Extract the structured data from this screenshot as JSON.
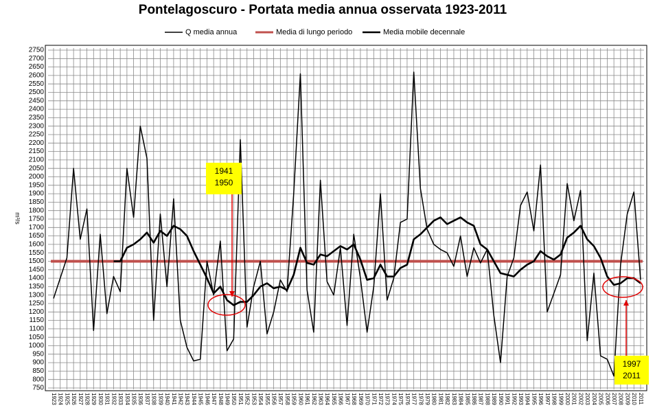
{
  "chart_data": {
    "type": "line",
    "title": "Pontelagoscuro - Portata media annua osservata 1923-2011",
    "y_label": "m³/s",
    "categories": [
      "1923",
      "1924",
      "1925",
      "1926",
      "1927",
      "1928",
      "1929",
      "1930",
      "1931",
      "1932",
      "1933",
      "1934",
      "1935",
      "1936",
      "1937",
      "1938",
      "1939",
      "1940",
      "1941",
      "1942",
      "1943",
      "1944",
      "1945",
      "1946",
      "1947",
      "1948",
      "1949",
      "1950",
      "1951",
      "1952",
      "1953",
      "1954",
      "1955",
      "1956",
      "1957",
      "1958",
      "1959",
      "1960",
      "1961",
      "1962",
      "1963",
      "1964",
      "1965",
      "1966",
      "1967",
      "1968",
      "1969",
      "1970",
      "1971",
      "1972",
      "1973",
      "1974",
      "1975",
      "1976",
      "1977",
      "1978",
      "1979",
      "1980",
      "1981",
      "1982",
      "1983",
      "1984",
      "1985",
      "1986",
      "1987",
      "1988",
      "1989",
      "1990",
      "1991",
      "1992",
      "1993",
      "1994",
      "1995",
      "1996",
      "1997",
      "1998",
      "1999",
      "2000",
      "2001",
      "2002",
      "2003",
      "2004",
      "2005",
      "2006",
      "2007",
      "2008",
      "2009",
      "2010",
      "2011"
    ],
    "series": [
      {
        "name": "Q media annua",
        "color": "#000000",
        "width": 1.5,
        "values": [
          1280,
          1400,
          1520,
          2050,
          1630,
          1810,
          1090,
          1660,
          1190,
          1410,
          1320,
          2050,
          1760,
          2300,
          2110,
          1150,
          1780,
          1350,
          1870,
          1150,
          990,
          910,
          920,
          1500,
          1300,
          1620,
          970,
          1040,
          2220,
          1110,
          1350,
          1500,
          1070,
          1200,
          1390,
          1320,
          1900,
          2610,
          1330,
          1080,
          1980,
          1380,
          1300,
          1580,
          1120,
          1660,
          1400,
          1080,
          1350,
          1900,
          1270,
          1400,
          1730,
          1750,
          2620,
          1930,
          1690,
          1600,
          1570,
          1550,
          1470,
          1650,
          1410,
          1580,
          1490,
          1570,
          1180,
          900,
          1410,
          1520,
          1830,
          1910,
          1680,
          2070,
          1200,
          1310,
          1420,
          1960,
          1740,
          1920,
          1030,
          1430,
          940,
          920,
          820,
          1480,
          1780,
          1910,
          1390
        ]
      },
      {
        "name": "Media mobile decennale",
        "color": "#000000",
        "width": 2.6,
        "values": [
          null,
          null,
          null,
          null,
          null,
          null,
          null,
          null,
          null,
          1500,
          1500,
          1580,
          1600,
          1630,
          1670,
          1610,
          1680,
          1650,
          1710,
          1690,
          1650,
          1560,
          1480,
          1400,
          1310,
          1350,
          1270,
          1240,
          1260,
          1260,
          1300,
          1350,
          1370,
          1340,
          1350,
          1330,
          1420,
          1580,
          1490,
          1480,
          1540,
          1530,
          1560,
          1590,
          1570,
          1600,
          1510,
          1390,
          1400,
          1480,
          1410,
          1410,
          1460,
          1480,
          1630,
          1660,
          1700,
          1740,
          1760,
          1720,
          1740,
          1760,
          1730,
          1710,
          1600,
          1570,
          1500,
          1430,
          1420,
          1410,
          1450,
          1480,
          1500,
          1560,
          1530,
          1510,
          1540,
          1640,
          1670,
          1710,
          1630,
          1590,
          1520,
          1410,
          1360,
          1370,
          1400,
          1400,
          1370
        ]
      }
    ],
    "reference_line": {
      "name": "Media di lungo periodo",
      "value": 1500,
      "color": "#c0504d"
    },
    "ylim": [
      750,
      2750
    ],
    "yticks": [
      750,
      800,
      850,
      900,
      950,
      1000,
      1050,
      1100,
      1150,
      1200,
      1250,
      1300,
      1350,
      1400,
      1450,
      1500,
      1550,
      1600,
      1650,
      1700,
      1750,
      1800,
      1850,
      1900,
      1950,
      2000,
      2050,
      2100,
      2150,
      2200,
      2250,
      2300,
      2350,
      2400,
      2450,
      2500,
      2550,
      2600,
      2650,
      2700,
      2750
    ],
    "grid": true,
    "annotations": [
      {
        "lines": [
          "1941",
          "1950"
        ]
      },
      {
        "lines": [
          "1997",
          "2011"
        ]
      }
    ]
  }
}
